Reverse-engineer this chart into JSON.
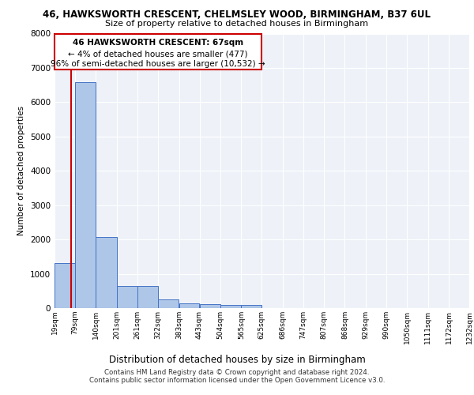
{
  "title_line1": "46, HAWKSWORTH CRESCENT, CHELMSLEY WOOD, BIRMINGHAM, B37 6UL",
  "title_line2": "Size of property relative to detached houses in Birmingham",
  "xlabel": "Distribution of detached houses by size in Birmingham",
  "ylabel": "Number of detached properties",
  "footer_line1": "Contains HM Land Registry data © Crown copyright and database right 2024.",
  "footer_line2": "Contains public sector information licensed under the Open Government Licence v3.0.",
  "property_label": "46 HAWKSWORTH CRESCENT: 67sqm",
  "annotation_line1": "← 4% of detached houses are smaller (477)",
  "annotation_line2": "96% of semi-detached houses are larger (10,532) →",
  "property_size": 67,
  "bar_edges": [
    19,
    79,
    140,
    201,
    261,
    322,
    383,
    443,
    504,
    565,
    625,
    686,
    747,
    807,
    868,
    929,
    990,
    1050,
    1111,
    1172,
    1232
  ],
  "bar_heights": [
    1310,
    6580,
    2080,
    650,
    650,
    260,
    140,
    115,
    90,
    90,
    0,
    0,
    0,
    0,
    0,
    0,
    0,
    0,
    0,
    0
  ],
  "bar_color": "#aec6e8",
  "bar_edge_color": "#4472c4",
  "highlight_color": "#cc0000",
  "annotation_box_color": "#cc0000",
  "ylim": [
    0,
    8000
  ],
  "background_color": "#eef2f8",
  "grid_color": "#ffffff"
}
